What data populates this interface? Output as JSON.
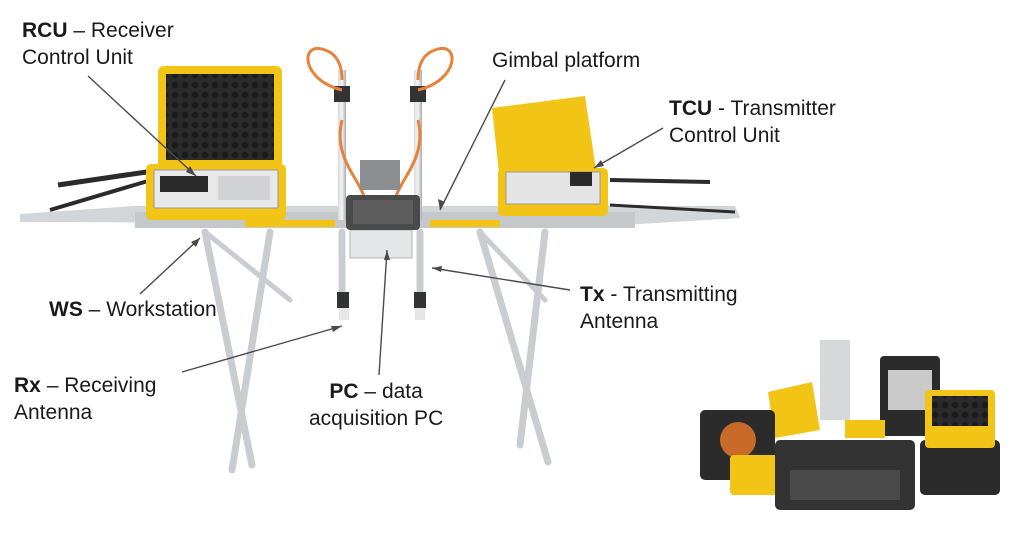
{
  "labels": {
    "rcu": {
      "abbr": "RCU",
      "sep": " – ",
      "line1": "Receiver",
      "line2": "Control Unit"
    },
    "gimbal": {
      "text": "Gimbal platform"
    },
    "tcu": {
      "abbr": "TCU",
      "sep": " - ",
      "line1": "Transmitter",
      "line2": "Control Unit"
    },
    "ws": {
      "abbr": "WS",
      "sep": " – ",
      "line1": "Workstation"
    },
    "tx": {
      "abbr": "Tx",
      "sep": " - ",
      "line1": "Transmitting",
      "line2": "Antenna"
    },
    "rx": {
      "abbr": "Rx",
      "sep": " – ",
      "line1": "Receiving",
      "line2": "Antenna"
    },
    "pc": {
      "abbr": "PC",
      "sep": " – ",
      "line1": "data",
      "line2": "acquisition PC"
    }
  },
  "colors": {
    "case_yellow": "#f2c416",
    "frame_grey": "#b8bcc0",
    "case_black": "#2a2a2a",
    "cable_orange": "#e8823a"
  }
}
